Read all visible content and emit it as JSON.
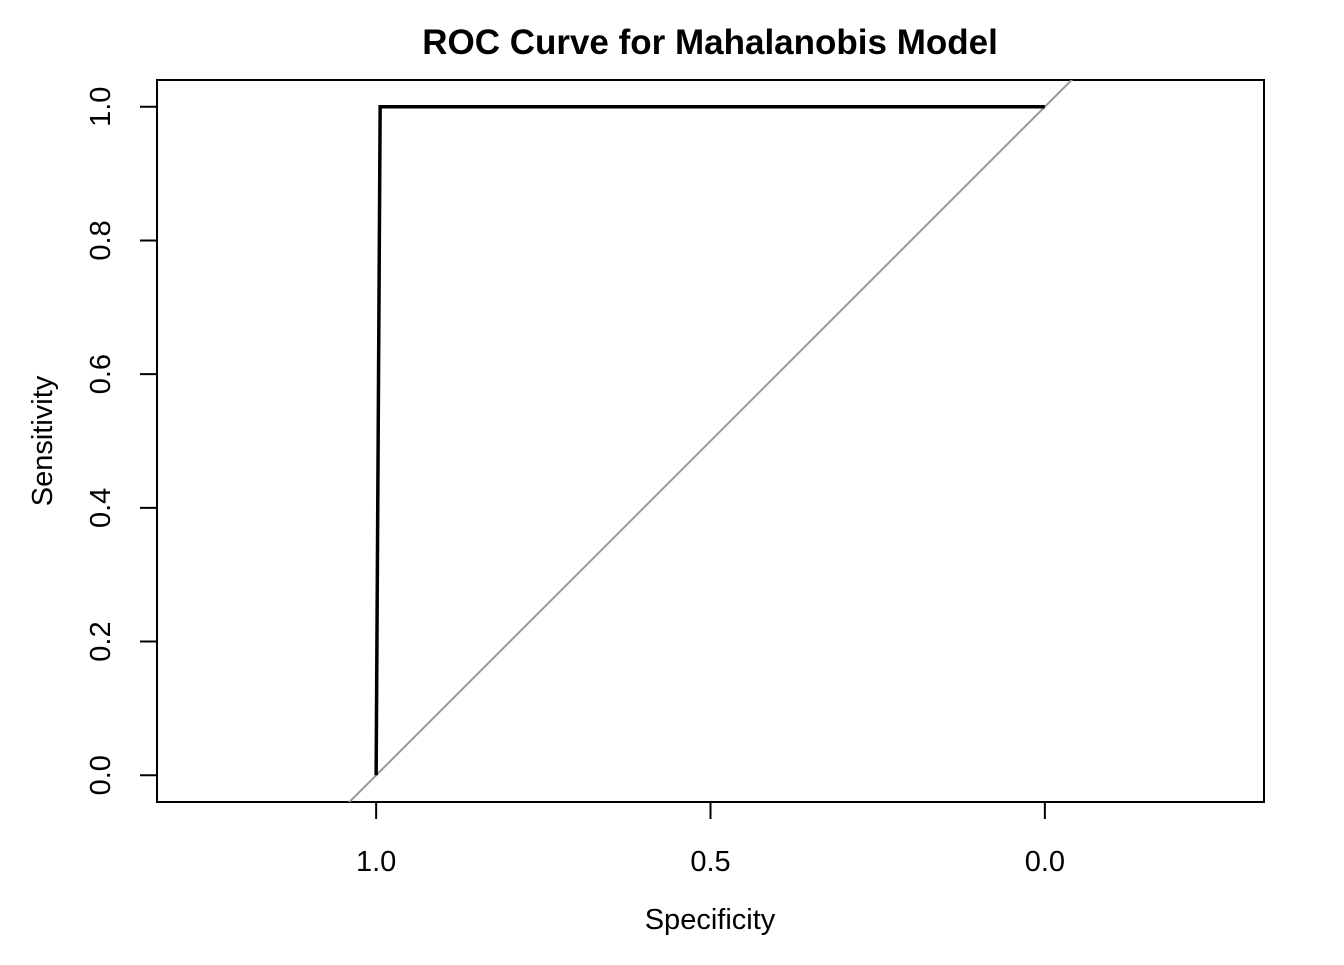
{
  "chart_data": {
    "type": "line",
    "title": "ROC Curve for Mahalanobis Model",
    "xlabel": "Specificity",
    "ylabel": "Sensitivity",
    "x_reversed": true,
    "xlim": [
      1.3277,
      -0.3277
    ],
    "ylim": [
      -0.04,
      1.04
    ],
    "xticks": [
      {
        "value": 1.0,
        "label": "1.0"
      },
      {
        "value": 0.5,
        "label": "0.5"
      },
      {
        "value": 0.0,
        "label": "0.0"
      }
    ],
    "yticks": [
      {
        "value": 0.0,
        "label": "0.0"
      },
      {
        "value": 0.2,
        "label": "0.2"
      },
      {
        "value": 0.4,
        "label": "0.4"
      },
      {
        "value": 0.6,
        "label": "0.6"
      },
      {
        "value": 0.8,
        "label": "0.8"
      },
      {
        "value": 1.0,
        "label": "1.0"
      }
    ],
    "grid": false,
    "legend": "none",
    "series": [
      {
        "color": "#000000",
        "x": [
          1.0,
          0.994,
          0.0
        ],
        "y": [
          0.0,
          1.0,
          1.0
        ]
      }
    ],
    "reference_line": {
      "type": "diagonal",
      "color": "#999999",
      "x": [
        1.0,
        0.0
      ],
      "y": [
        0.0,
        1.0
      ]
    }
  }
}
